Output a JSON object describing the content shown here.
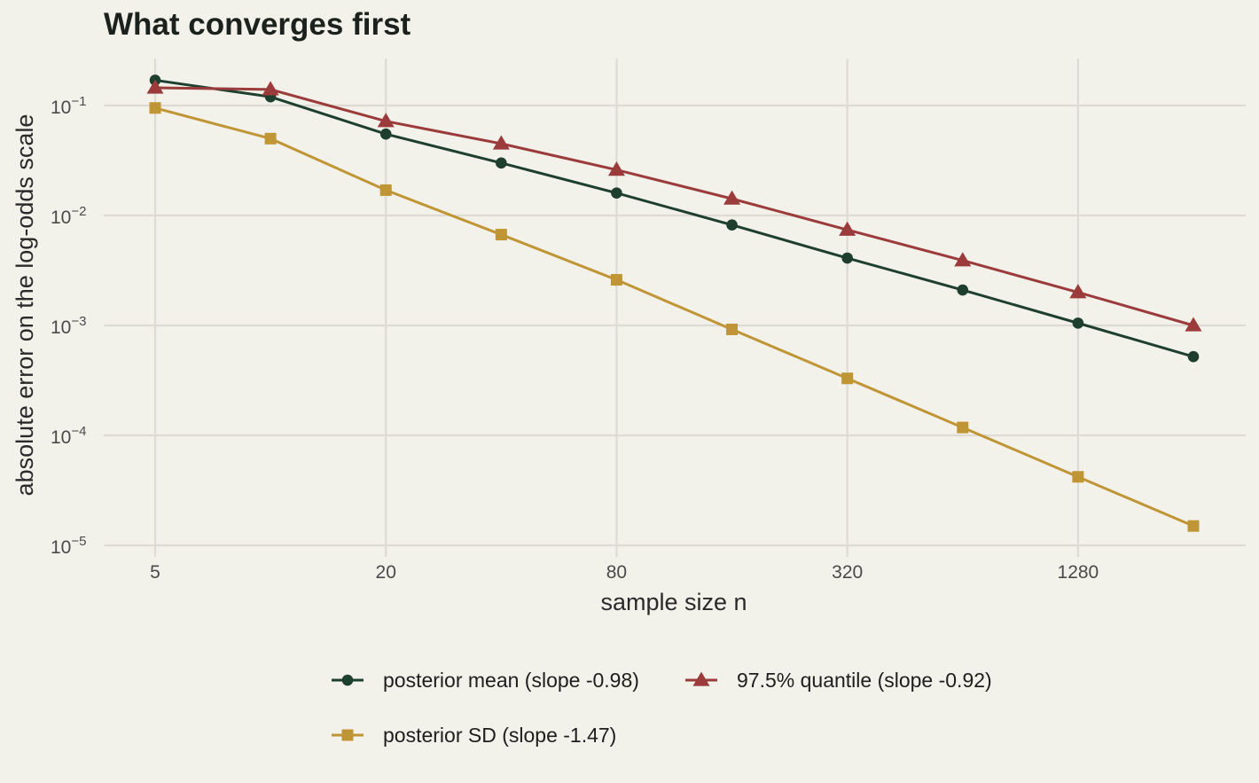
{
  "chart_data": {
    "type": "line",
    "title": "What converges first",
    "xlabel": "sample size n",
    "ylabel": "absolute error on the log-odds scale",
    "x_scale": "log2",
    "y_scale": "log10",
    "x": [
      5,
      10,
      20,
      40,
      80,
      160,
      320,
      640,
      1280,
      2560
    ],
    "x_ticks": [
      5,
      20,
      80,
      320,
      1280
    ],
    "x_tick_labels": [
      "5",
      "20",
      "80",
      "320",
      "1280"
    ],
    "y_ticks": [
      1e-05,
      0.0001,
      0.001,
      0.01,
      0.1
    ],
    "y_tick_labels": [
      {
        "base": "10",
        "exp": "−5"
      },
      {
        "base": "10",
        "exp": "−4"
      },
      {
        "base": "10",
        "exp": "−3"
      },
      {
        "base": "10",
        "exp": "−2"
      },
      {
        "base": "10",
        "exp": "−1"
      }
    ],
    "grid": true,
    "legend_position": "bottom",
    "series": [
      {
        "name": "posterior mean (slope -0.98)",
        "color": "#1f3f2e",
        "marker": "circle",
        "values": [
          0.17,
          0.12,
          0.055,
          0.03,
          0.016,
          0.0082,
          0.0041,
          0.0021,
          0.00105,
          0.00052
        ]
      },
      {
        "name": "97.5% quantile (slope -0.92)",
        "color": "#9b3b3b",
        "marker": "triangle",
        "values": [
          0.145,
          0.14,
          0.072,
          0.045,
          0.026,
          0.0142,
          0.0074,
          0.0039,
          0.002,
          0.001
        ]
      },
      {
        "name": "posterior SD (slope -1.47)",
        "color": "#c09536",
        "marker": "square",
        "values": [
          0.095,
          0.05,
          0.017,
          0.0067,
          0.0026,
          0.00092,
          0.00033,
          0.000118,
          4.2e-05,
          1.5e-05
        ]
      }
    ]
  }
}
